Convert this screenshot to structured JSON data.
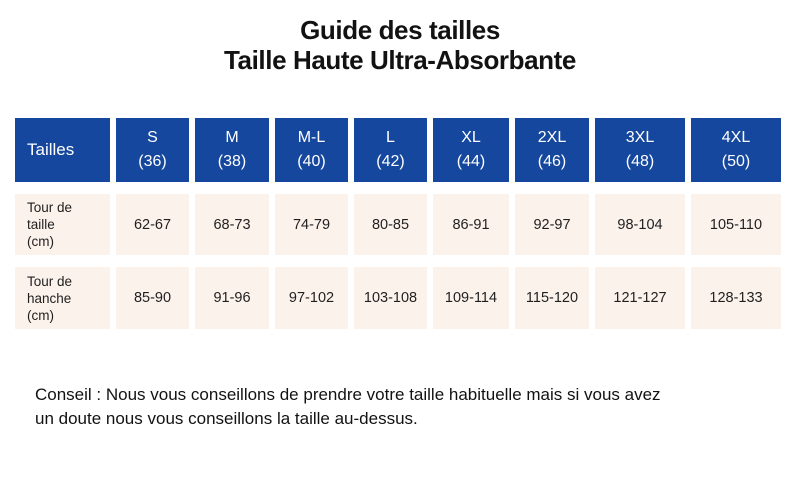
{
  "title": {
    "line1": "Guide des tailles",
    "line2": "Taille Haute Ultra-Absorbante"
  },
  "table": {
    "corner_label": "Tailles",
    "columns": [
      {
        "size": "S",
        "eu": "(36)"
      },
      {
        "size": "M",
        "eu": "(38)"
      },
      {
        "size": "M-L",
        "eu": "(40)"
      },
      {
        "size": "L",
        "eu": "(42)"
      },
      {
        "size": "XL",
        "eu": "(44)"
      },
      {
        "size": "2XL",
        "eu": "(46)"
      },
      {
        "size": "3XL",
        "eu": "(48)"
      },
      {
        "size": "4XL",
        "eu": "(50)"
      }
    ],
    "rows": [
      {
        "label": "Tour de\ntaille\n(cm)",
        "values": [
          "62-67",
          "68-73",
          "74-79",
          "80-85",
          "86-91",
          "92-97",
          "98-104",
          "105-110"
        ]
      },
      {
        "label": "Tour de\nhanche\n(cm)",
        "values": [
          "85-90",
          "91-96",
          "97-102",
          "103-108",
          "109-114",
          "115-120",
          "121-127",
          "128-133"
        ]
      }
    ]
  },
  "conseil": {
    "text": "Conseil : Nous vous conseillons de prendre votre taille habituelle mais si vous avez\nun doute nous vous conseillons la taille au-dessus."
  },
  "colors": {
    "header_bg": "#14479D",
    "header_text": "#FFFFFF",
    "cell_bg": "#FCF2EC",
    "text_dark": "#1F1F1F",
    "page_bg": "#FFFFFF"
  }
}
